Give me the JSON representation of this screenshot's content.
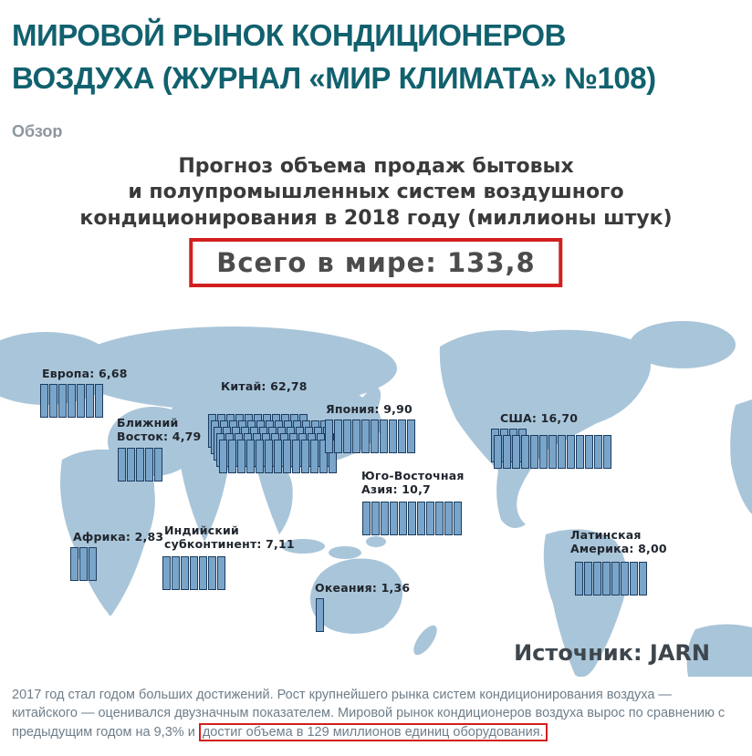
{
  "colors": {
    "heading": "#11616e",
    "section_label": "#8d979e",
    "chart_title": "#3a3a3a",
    "accent_red": "#d21f1f",
    "map_land": "#a9c5d9",
    "bar_fill": "#7aa5cb",
    "bar_border": "#1c3c5e",
    "region_label": "#20262e",
    "source_text": "#3e464d",
    "footer_text": "#6e7e8a"
  },
  "header": {
    "title_line1": "МИРОВОЙ РЫНОК КОНДИЦИОНЕРОВ",
    "title_line2": "ВОЗДУХА (ЖУРНАЛ «МИР КЛИМАТА» №108)",
    "section_label": "Обзор"
  },
  "chart": {
    "title_line1": "Прогноз объема продаж бытовых",
    "title_line2": "и полупромышленных систем воздушного",
    "title_line3": "кондиционирования в 2018 году (миллионы штук)",
    "total_label": "Всего в мире: 133,8",
    "source_label": "Источник: JARN"
  },
  "regions": [
    {
      "id": "europe",
      "lines": [
        "Европа: 6,68"
      ],
      "value": 6.68
    },
    {
      "id": "middle-east",
      "lines": [
        "Ближний",
        "Восток: 4,79"
      ],
      "value": 4.79
    },
    {
      "id": "china",
      "lines": [
        "Китай: 62,78"
      ],
      "value": 62.78
    },
    {
      "id": "japan",
      "lines": [
        "Япония: 9,90"
      ],
      "value": 9.9
    },
    {
      "id": "usa",
      "lines": [
        "США: 16,70"
      ],
      "value": 16.7
    },
    {
      "id": "se-asia",
      "lines": [
        "Юго-Восточная",
        "Азия: 10,7"
      ],
      "value": 10.7
    },
    {
      "id": "africa",
      "lines": [
        "Африка: 2,83"
      ],
      "value": 2.83
    },
    {
      "id": "india",
      "lines": [
        "Индийский",
        "субконтинент: 7,11"
      ],
      "value": 7.11
    },
    {
      "id": "oceania",
      "lines": [
        "Океания: 1,36"
      ],
      "value": 1.36
    },
    {
      "id": "latin-america",
      "lines": [
        "Латинская",
        "Америка: 8,00"
      ],
      "value": 8.0
    }
  ],
  "chart_data": {
    "type": "bar",
    "title": "Прогноз объема продаж бытовых и полупромышленных систем воздушного кондиционирования в 2018 году (миллионы штук)",
    "unit": "миллионы штук",
    "total": {
      "label": "Всего в мире",
      "value": 133.8
    },
    "source": "JARN",
    "categories": [
      "Европа",
      "Ближний Восток",
      "Китай",
      "Япония",
      "США",
      "Юго-Восточная Азия",
      "Африка",
      "Индийский субконтинент",
      "Океания",
      "Латинская Америка"
    ],
    "values": [
      6.68,
      4.79,
      62.78,
      9.9,
      16.7,
      10.7,
      2.83,
      7.11,
      1.36,
      8.0
    ],
    "legend_position": "none",
    "grid": false,
    "note": "Значения изображены пиктограммами-столбиками на карте мира; один столбик ≈ 1 миллион штук"
  },
  "footer": {
    "text_before": "2017 год стал годом больших достижений. Рост крупнейшего рынка систем кондиционирования воздуха — китайского — оценивался двузначным показателем. Мировой рынок кондиционеров воздуха вырос по сравнению с предыдущим годом на 9,3% и ",
    "text_highlight": "достиг объема в 129 миллионов единиц оборудования."
  }
}
